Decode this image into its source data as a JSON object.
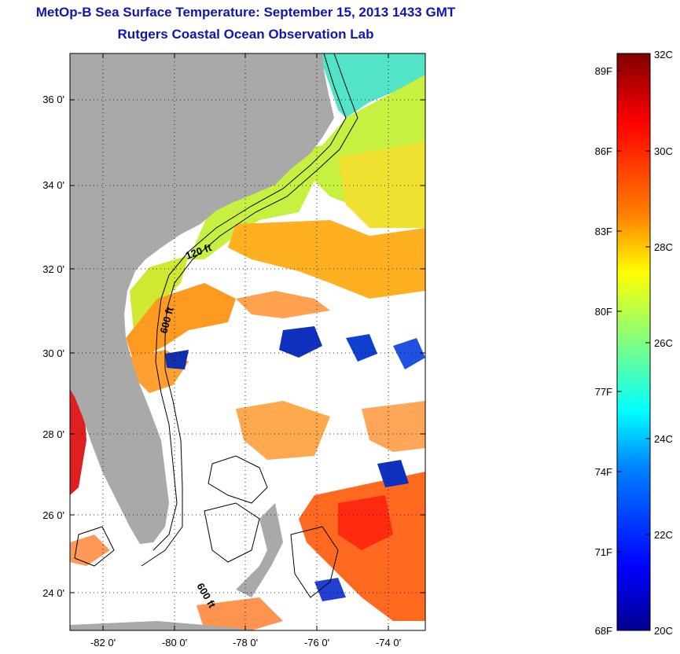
{
  "header": {
    "title": "MetOp-B Sea Surface Temperature:  September 15, 2013 1433 GMT",
    "subtitle": "Rutgers Coastal Ocean Observation Lab"
  },
  "map": {
    "lat_ticks": [
      "36 0'",
      "34 0'",
      "32 0'",
      "30 0'",
      "28 0'",
      "26 0'",
      "24 0'"
    ],
    "lon_ticks": [
      "-82 0'",
      "-80 0'",
      "-78 0'",
      "-76 0'",
      "-74 0'"
    ],
    "lat_range": [
      23,
      37.1
    ],
    "lon_range": [
      -83,
      -73
    ],
    "contour_labels": [
      "120 ft",
      "600 ft",
      "600 ft"
    ],
    "colors": {
      "land": "#a9a9a9",
      "cloud": "#ffffff",
      "contour": "#000000",
      "grid": "#000000"
    }
  },
  "colorbar": {
    "fahrenheit_labels": [
      "89F",
      "86F",
      "83F",
      "80F",
      "77F",
      "74F",
      "71F",
      "68F"
    ],
    "celsius_labels": [
      "32C",
      "30C",
      "28C",
      "26C",
      "24C",
      "22C",
      "20C"
    ],
    "range_c": [
      20,
      32
    ],
    "colormap": [
      "#00008f",
      "#0000ff",
      "#0080ff",
      "#00ffff",
      "#80ff80",
      "#ffff00",
      "#ff8000",
      "#ff0000",
      "#800000"
    ]
  }
}
